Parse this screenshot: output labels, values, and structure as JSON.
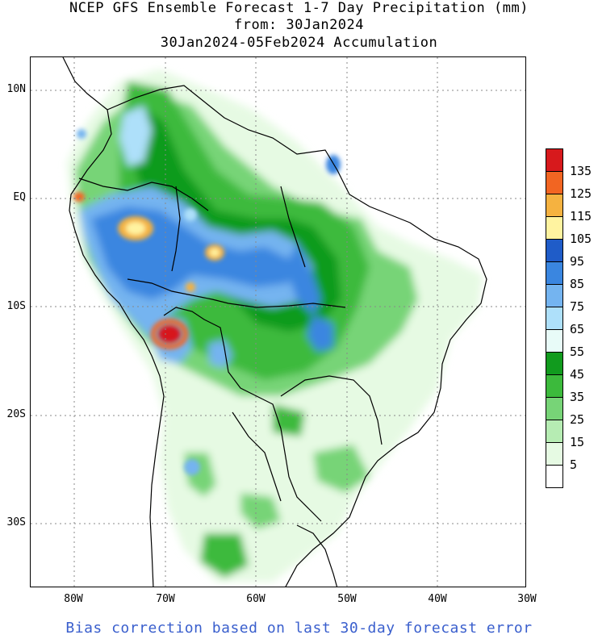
{
  "title": {
    "line1": "NCEP GFS Ensemble Forecast 1-7 Day Precipitation (mm)",
    "line2": "from: 30Jan2024",
    "line3": "30Jan2024-05Feb2024 Accumulation"
  },
  "axes": {
    "lat_labels": [
      "10N",
      "EQ",
      "10S",
      "20S",
      "30S"
    ],
    "lon_labels": [
      "80W",
      "70W",
      "60W",
      "50W",
      "40W",
      "30W"
    ],
    "grid": true
  },
  "legend": {
    "labels": [
      "135",
      "125",
      "115",
      "105",
      "95",
      "85",
      "75",
      "65",
      "55",
      "45",
      "35",
      "25",
      "15",
      "5"
    ],
    "colors": [
      "#d7191c",
      "#f26522",
      "#f5b240",
      "#fff3a0",
      "#1f5cc8",
      "#3a86e0",
      "#74b4f0",
      "#aee0fa",
      "#e8fbf8",
      "#119b1e",
      "#3cba3c",
      "#77d477",
      "#b6ecb3",
      "#e6fae3",
      "#ffffff"
    ]
  },
  "footer": "Bias correction based on last 30-day forecast error",
  "colors": {
    "footer_text": "#3a5fcd",
    "coast": "#000000"
  }
}
